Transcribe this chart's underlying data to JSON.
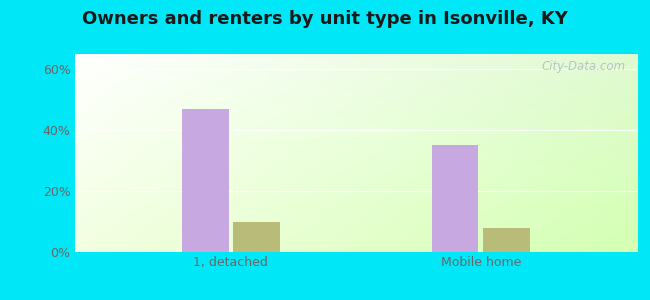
{
  "title": "Owners and renters by unit type in Isonville, KY",
  "categories": [
    "1, detached",
    "Mobile home"
  ],
  "owner_values": [
    47,
    35
  ],
  "renter_values": [
    10,
    8
  ],
  "owner_color": "#c8a8e0",
  "renter_color": "#b8bc78",
  "ylabel_ticks": [
    0,
    20,
    40,
    60
  ],
  "ylabel_labels": [
    "0%",
    "20%",
    "40%",
    "60%"
  ],
  "ylim": [
    0,
    65
  ],
  "bar_width": 0.3,
  "group_positions": [
    1.0,
    2.6
  ],
  "background_outer": "#00e8f8",
  "title_fontsize": 13,
  "tick_fontsize": 9,
  "legend_fontsize": 9,
  "watermark_text": "City-Data.com",
  "watermark_color": "#b0bec5"
}
